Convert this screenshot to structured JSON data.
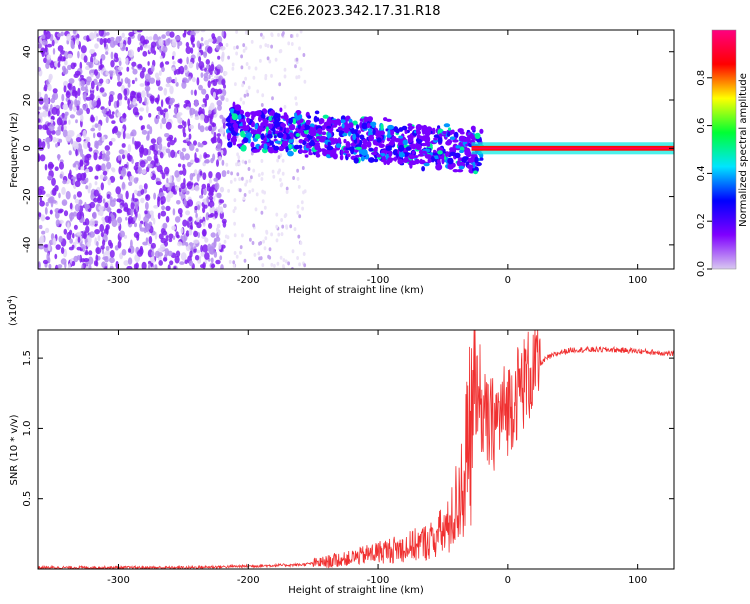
{
  "title": "C2E6.2023.342.17.31.R18",
  "colorbar": {
    "label": "Normalized spectral amplitude",
    "ticks": [
      "0.0",
      "0.2",
      "0.4",
      "0.6",
      "0.8"
    ],
    "tick_values": [
      0.0,
      0.2,
      0.4,
      0.6,
      0.8
    ],
    "range": [
      0.0,
      1.0
    ],
    "colors": [
      "#d8c8f0",
      "#7f00ff",
      "#0000ff",
      "#00e5ff",
      "#00ff33",
      "#ffff00",
      "#ff0000",
      "#ff0080"
    ]
  },
  "chart_data": [
    {
      "type": "heatmap",
      "name": "spectrogram",
      "xlabel": "Height of straight line (km)",
      "ylabel": "Frequency (Hz)",
      "xlim": [
        -362,
        128
      ],
      "ylim": [
        -50,
        49
      ],
      "x_ticks": [
        -300,
        -200,
        -100,
        0,
        100
      ],
      "x_tick_labels": [
        "-300",
        "-200",
        "-100",
        "0",
        "100"
      ],
      "y_ticks": [
        -40,
        -20,
        0,
        20,
        40
      ],
      "y_tick_labels": [
        "-40",
        "-20",
        "0",
        "20",
        "40"
      ],
      "regions": [
        {
          "x": [
            -362,
            -218
          ],
          "freq": [
            -50,
            49
          ],
          "level": 0.1,
          "note": "broadband noise"
        },
        {
          "x": [
            -200,
            -158
          ],
          "freq": [
            -50,
            49
          ],
          "level": 0.03,
          "note": "faint noise"
        },
        {
          "x": [
            -215,
            -20
          ],
          "freq_center_start": 9,
          "freq_center_end": -1,
          "level": 0.3,
          "note": "scattered signal"
        },
        {
          "x": [
            -28,
            128
          ],
          "freq": [
            -1,
            1
          ],
          "level": 0.9,
          "note": "carrier line"
        }
      ]
    },
    {
      "type": "line",
      "name": "snr",
      "xlabel": "Height of straight line (km)",
      "ylabel": "SNR (10 * v/v)",
      "y_multiplier_label": "(x10",
      "y_multiplier_exp": "4",
      "y_multiplier_close": ")",
      "xlim": [
        -362,
        128
      ],
      "ylim": [
        0,
        1.7
      ],
      "x_ticks": [
        -300,
        -200,
        -100,
        0,
        100
      ],
      "x_tick_labels": [
        "-300",
        "-200",
        "-100",
        "0",
        "100"
      ],
      "y_ticks": [
        0.5,
        1.0,
        1.5
      ],
      "y_tick_labels": [
        "0.5",
        "1.0",
        "1.5"
      ],
      "color": "#f03030",
      "series": [
        {
          "x": [
            -362,
            -300,
            -250,
            -200,
            -160,
            -140,
            -120,
            -100,
            -80,
            -60,
            -45,
            -35,
            -30,
            -25,
            -22,
            -20,
            -15,
            -10,
            -5,
            0,
            10,
            20,
            30,
            40,
            50,
            60,
            80,
            100,
            128
          ],
          "y": [
            0.01,
            0.01,
            0.01,
            0.02,
            0.03,
            0.05,
            0.08,
            0.12,
            0.15,
            0.2,
            0.3,
            0.6,
            0.9,
            1.2,
            1.35,
            1.1,
            1.0,
            1.05,
            1.1,
            1.15,
            1.3,
            1.42,
            1.5,
            1.54,
            1.56,
            1.56,
            1.56,
            1.55,
            1.53
          ]
        }
      ]
    }
  ]
}
